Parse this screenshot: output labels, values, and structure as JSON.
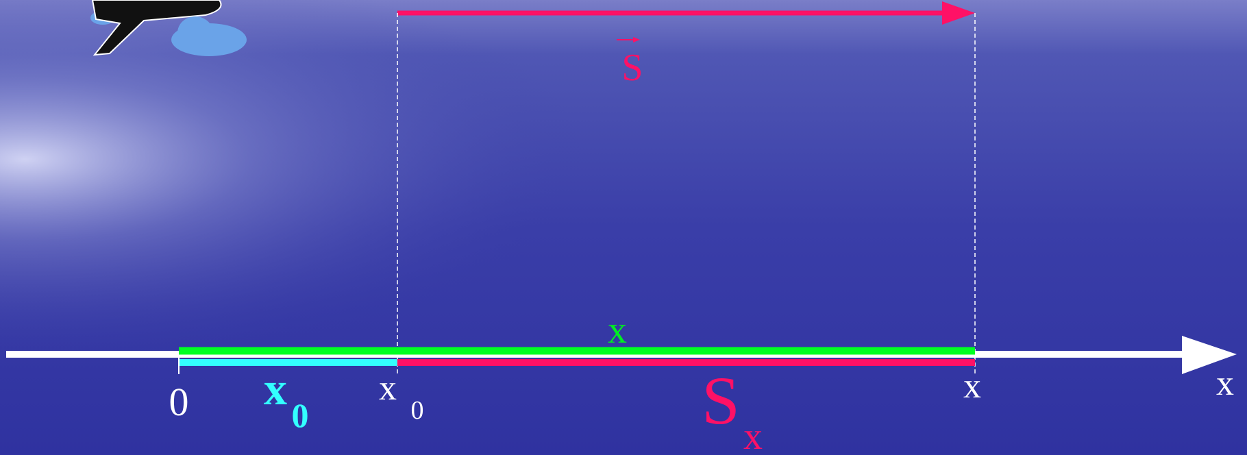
{
  "displacement_vector": {
    "label": "S"
  },
  "coordinate_label": "x",
  "initial_coordinate": {
    "base": "x",
    "sub": "0"
  },
  "projection": {
    "base": "S",
    "sub": "x"
  },
  "axis": {
    "origin": "0",
    "start": {
      "base": "x",
      "sub": "0"
    },
    "end": "x",
    "name": "x"
  }
}
